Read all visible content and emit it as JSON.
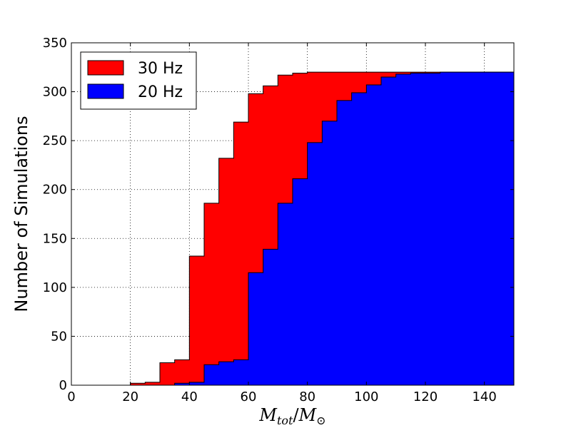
{
  "chart_data": {
    "type": "area",
    "step": true,
    "xlabel": "M_tot / M_⊙",
    "xlabel_parts": {
      "main1": "M",
      "sub1": "tot",
      "slash": "/",
      "main2": "M",
      "sub2": "⊙"
    },
    "ylabel": "Number of Simulations",
    "xlim": [
      0,
      150
    ],
    "ylim": [
      0,
      350
    ],
    "xticks": [
      0,
      20,
      40,
      60,
      80,
      100,
      120,
      140
    ],
    "yticks": [
      0,
      50,
      100,
      150,
      200,
      250,
      300,
      350
    ],
    "grid": true,
    "legend_position": "top-left",
    "bin_edges": [
      0,
      5,
      10,
      15,
      20,
      25,
      30,
      35,
      40,
      45,
      50,
      55,
      60,
      65,
      70,
      75,
      80,
      85,
      90,
      95,
      100,
      105,
      110,
      115,
      120,
      125,
      130,
      135,
      140,
      145,
      150
    ],
    "series": [
      {
        "name": "30 Hz",
        "color": "#ff0000",
        "values": [
          0,
          0,
          0,
          0,
          2,
          3,
          23,
          26,
          132,
          186,
          232,
          269,
          298,
          306,
          317,
          319,
          320,
          320,
          320,
          320,
          320,
          320,
          320,
          320,
          320,
          320,
          320,
          320,
          320,
          320
        ]
      },
      {
        "name": "20 Hz",
        "color": "#0000ff",
        "values": [
          0,
          0,
          0,
          0,
          0,
          0,
          0,
          2,
          3,
          21,
          24,
          26,
          115,
          139,
          186,
          211,
          248,
          270,
          291,
          299,
          307,
          315,
          318,
          319,
          319,
          320,
          320,
          320,
          320,
          320
        ]
      }
    ]
  }
}
